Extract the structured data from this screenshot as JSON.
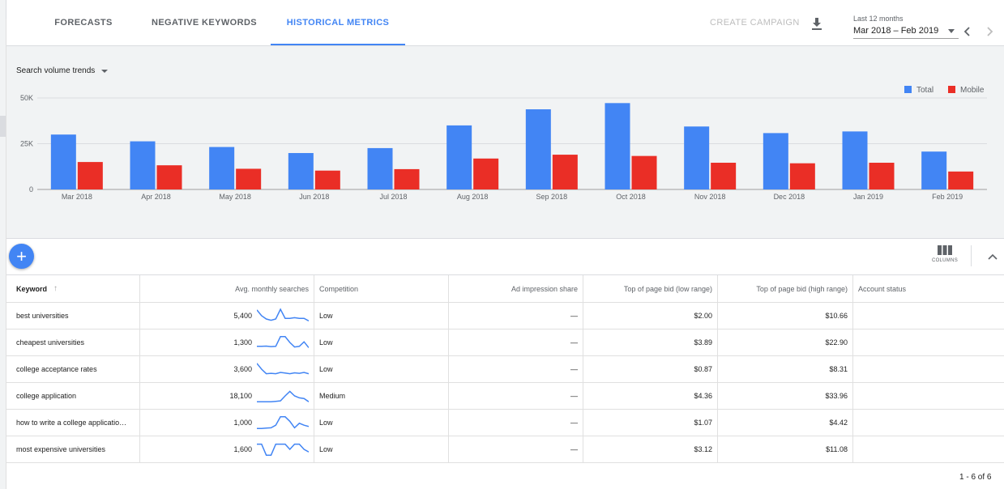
{
  "tabs": [
    {
      "label": "FORECASTS"
    },
    {
      "label": "NEGATIVE KEYWORDS"
    },
    {
      "label": "HISTORICAL METRICS",
      "active": true
    }
  ],
  "toolbar": {
    "create_campaign": "CREATE CAMPAIGN",
    "download_icon": "download-icon",
    "date_range_caption": "Last 12 months",
    "date_range_value": "Mar 2018 – Feb 2019"
  },
  "chart_panel": {
    "selector_label": "Search volume trends"
  },
  "chart_data": {
    "type": "bar",
    "categories": [
      "Mar 2018",
      "Apr 2018",
      "May 2018",
      "Jun 2018",
      "Jul 2018",
      "Aug 2018",
      "Sep 2018",
      "Oct 2018",
      "Nov 2018",
      "Dec 2018",
      "Jan 2019",
      "Feb 2019"
    ],
    "series": [
      {
        "name": "Total",
        "color": "#4285f4",
        "values": [
          30000,
          26300,
          23200,
          19900,
          22600,
          35000,
          43800,
          47200,
          34400,
          30800,
          31700,
          20700
        ]
      },
      {
        "name": "Mobile",
        "color": "#ea2e26",
        "values": [
          15000,
          13200,
          11300,
          10300,
          11100,
          16900,
          19000,
          18300,
          14600,
          14300,
          14600,
          9800
        ]
      }
    ],
    "y_ticks": [
      {
        "v": 0,
        "label": "0"
      },
      {
        "v": 25000,
        "label": "25K"
      },
      {
        "v": 50000,
        "label": "50K"
      }
    ],
    "ylim": [
      0,
      50000
    ],
    "legend_position": "top-right",
    "grid": true
  },
  "table": {
    "headers": [
      "Keyword",
      "Avg. monthly searches",
      "Competition",
      "Ad impression share",
      "Top of page bid (low range)",
      "Top of page bid (high range)",
      "Account status"
    ],
    "rows": [
      {
        "keyword": "best universities",
        "avg": "5,400",
        "trend": [
          0.95,
          0.5,
          0.25,
          0.15,
          0.25,
          1.0,
          0.3,
          0.3,
          0.35,
          0.3,
          0.3,
          0.1
        ],
        "competition": "Low",
        "impression": "—",
        "low": "$2.00",
        "high": "$10.66",
        "status": ""
      },
      {
        "keyword": "cheapest universities",
        "avg": "1,300",
        "trend": [
          0.2,
          0.2,
          0.22,
          0.18,
          0.2,
          0.95,
          0.95,
          0.5,
          0.15,
          0.2,
          0.55,
          0.1
        ],
        "competition": "Low",
        "impression": "—",
        "low": "$3.89",
        "high": "$22.90",
        "status": ""
      },
      {
        "keyword": "college acceptance rates",
        "avg": "3,600",
        "trend": [
          0.95,
          0.5,
          0.15,
          0.18,
          0.15,
          0.25,
          0.2,
          0.15,
          0.22,
          0.18,
          0.25,
          0.15
        ],
        "competition": "Low",
        "impression": "—",
        "low": "$0.87",
        "high": "$8.31",
        "status": ""
      },
      {
        "keyword": "college application",
        "avg": "18,100",
        "trend": [
          0.05,
          0.05,
          0.05,
          0.05,
          0.08,
          0.12,
          0.5,
          0.85,
          0.5,
          0.35,
          0.3,
          0.05
        ],
        "competition": "Medium",
        "impression": "—",
        "low": "$4.36",
        "high": "$33.96",
        "status": ""
      },
      {
        "keyword": "how to write a college applicatio…",
        "avg": "1,000",
        "trend": [
          0.05,
          0.05,
          0.08,
          0.1,
          0.3,
          0.95,
          0.95,
          0.6,
          0.1,
          0.45,
          0.3,
          0.2
        ],
        "competition": "Low",
        "impression": "—",
        "low": "$1.07",
        "high": "$4.42",
        "status": ""
      },
      {
        "keyword": "most expensive universities",
        "avg": "1,600",
        "trend": [
          0.9,
          0.9,
          0.05,
          0.05,
          0.9,
          0.9,
          0.9,
          0.5,
          0.9,
          0.9,
          0.5,
          0.3
        ],
        "competition": "Low",
        "impression": "—",
        "low": "$3.12",
        "high": "$11.08",
        "status": ""
      }
    ]
  },
  "columns_label": "COLUMNS",
  "pagination": "1 - 6 of 6"
}
